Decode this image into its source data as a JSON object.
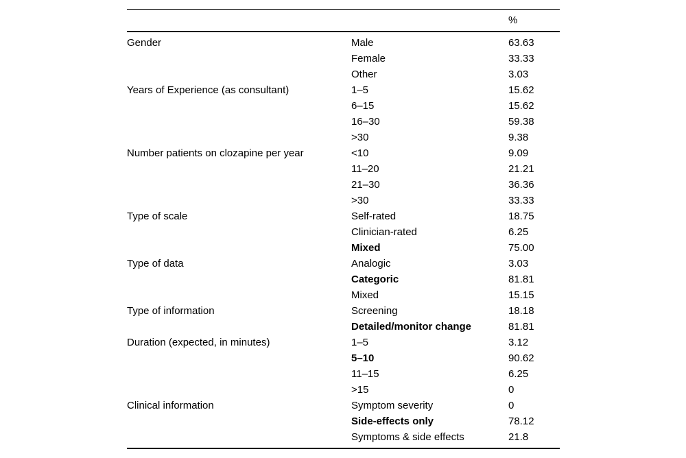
{
  "table": {
    "header": {
      "percent_label": "%"
    },
    "groups": [
      {
        "category": "Gender",
        "rows": [
          {
            "option": "Male",
            "value": "63.63",
            "bold": false
          },
          {
            "option": "Female",
            "value": "33.33",
            "bold": false
          },
          {
            "option": "Other",
            "value": "3.03",
            "bold": false
          }
        ]
      },
      {
        "category": "Years of Experience (as consultant)",
        "rows": [
          {
            "option": "1–5",
            "value": "15.62",
            "bold": false
          },
          {
            "option": "6–15",
            "value": "15.62",
            "bold": false
          },
          {
            "option": "16–30",
            "value": "59.38",
            "bold": false
          },
          {
            "option": ">30",
            "value": "9.38",
            "bold": false
          }
        ]
      },
      {
        "category": "Number patients on clozapine per year",
        "rows": [
          {
            "option": "<10",
            "value": "9.09",
            "bold": false
          },
          {
            "option": "11–20",
            "value": "21.21",
            "bold": false
          },
          {
            "option": "21–30",
            "value": "36.36",
            "bold": false
          },
          {
            "option": ">30",
            "value": "33.33",
            "bold": false
          }
        ]
      },
      {
        "category": "Type of scale",
        "rows": [
          {
            "option": "Self-rated",
            "value": "18.75",
            "bold": false
          },
          {
            "option": "Clinician-rated",
            "value": "6.25",
            "bold": false
          },
          {
            "option": "Mixed",
            "value": "75.00",
            "bold": true
          }
        ]
      },
      {
        "category": "Type of data",
        "rows": [
          {
            "option": "Analogic",
            "value": "3.03",
            "bold": false
          },
          {
            "option": "Categoric",
            "value": "81.81",
            "bold": true
          },
          {
            "option": "Mixed",
            "value": "15.15",
            "bold": false
          }
        ]
      },
      {
        "category": "Type of information",
        "rows": [
          {
            "option": "Screening",
            "value": "18.18",
            "bold": false
          },
          {
            "option": "Detailed/monitor change",
            "value": "81.81",
            "bold": true
          }
        ]
      },
      {
        "category": "Duration (expected, in minutes)",
        "rows": [
          {
            "option": "1–5",
            "value": "3.12",
            "bold": false
          },
          {
            "option": "5–10",
            "value": "90.62",
            "bold": true
          },
          {
            "option": "11–15",
            "value": "6.25",
            "bold": false
          },
          {
            "option": ">15",
            "value": "0",
            "bold": false
          }
        ]
      },
      {
        "category": "Clinical information",
        "rows": [
          {
            "option": "Symptom severity",
            "value": "0",
            "bold": false
          },
          {
            "option": "Side-effects only",
            "value": "78.12",
            "bold": true
          },
          {
            "option": "Symptoms & side effects",
            "value": "21.8",
            "bold": false
          }
        ]
      }
    ]
  }
}
